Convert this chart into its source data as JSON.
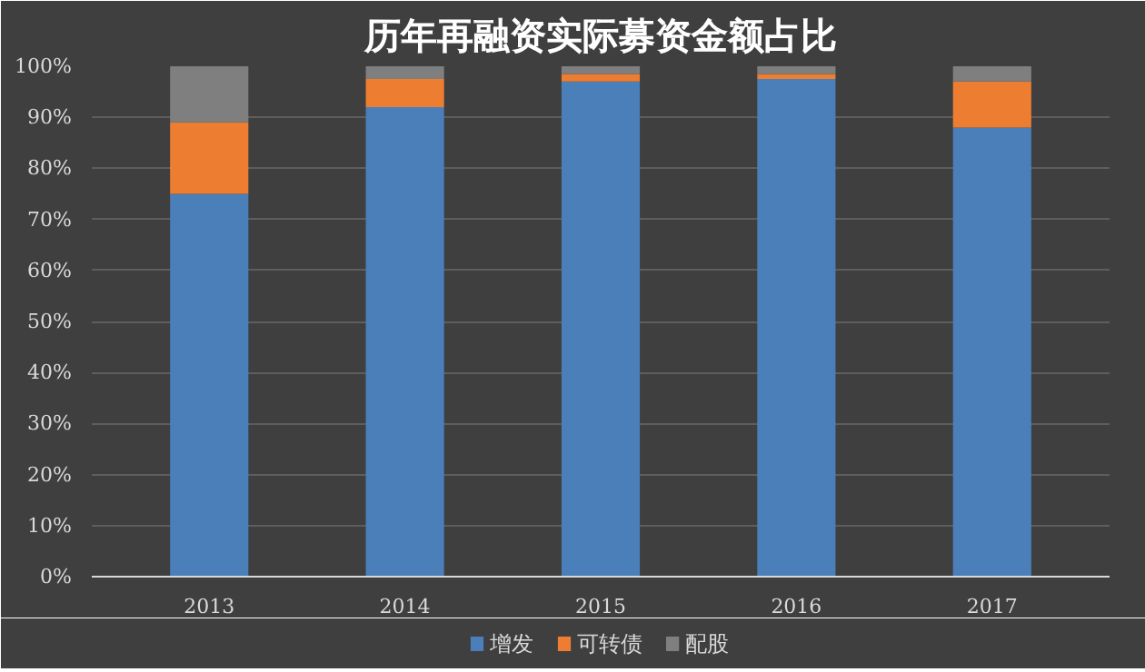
{
  "chart_data": {
    "type": "bar",
    "title": "历年再融资实际募资金额占比",
    "stacked": true,
    "categories": [
      "2013",
      "2014",
      "2015",
      "2016",
      "2017"
    ],
    "series": [
      {
        "name": "增发",
        "color": "#4a7fba",
        "values": [
          75,
          92,
          97,
          97.5,
          88
        ]
      },
      {
        "name": "可转债",
        "color": "#ed7d31",
        "values": [
          14,
          5.5,
          1.5,
          1,
          9
        ]
      },
      {
        "name": "配股",
        "color": "#7f7f7f",
        "values": [
          11,
          2.5,
          1.5,
          1.5,
          3
        ]
      }
    ],
    "ylim": [
      0,
      100
    ],
    "yticks": [
      {
        "value": 0,
        "label": "0%"
      },
      {
        "value": 10,
        "label": "10%"
      },
      {
        "value": 20,
        "label": "20%"
      },
      {
        "value": 30,
        "label": "30%"
      },
      {
        "value": 40,
        "label": "40%"
      },
      {
        "value": 50,
        "label": "50%"
      },
      {
        "value": 60,
        "label": "60%"
      },
      {
        "value": 70,
        "label": "70%"
      },
      {
        "value": 80,
        "label": "80%"
      },
      {
        "value": 90,
        "label": "90%"
      },
      {
        "value": 100,
        "label": "100%"
      }
    ],
    "grid": "y",
    "legend": "bottom"
  }
}
